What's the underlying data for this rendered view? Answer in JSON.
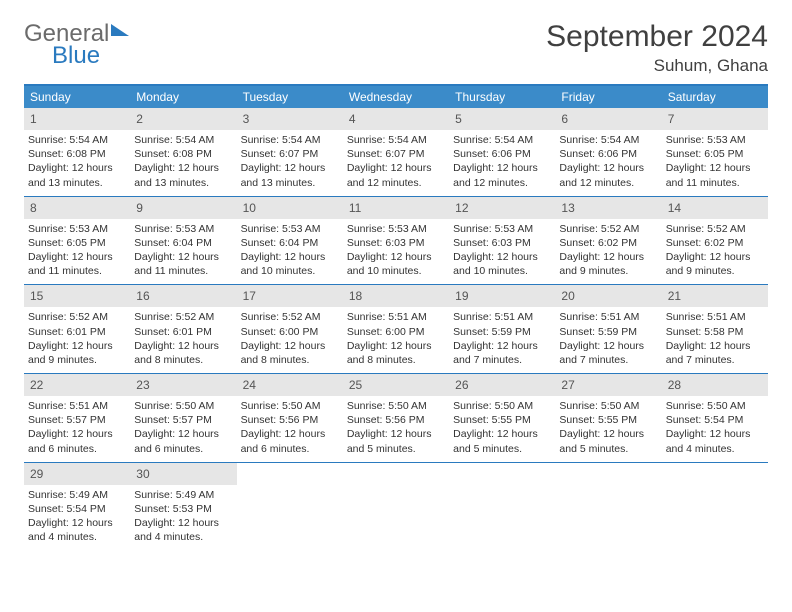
{
  "logo": {
    "word1": "General",
    "word2": "Blue"
  },
  "title": "September 2024",
  "location": "Suhum, Ghana",
  "colors": {
    "header_bg": "#3b8bc9",
    "rule": "#2a7abf",
    "daynum_bg": "#e6e6e6",
    "text": "#333333",
    "title_text": "#404040",
    "logo_gray": "#6b6b6b",
    "logo_blue": "#2a7abf"
  },
  "weekdays": [
    "Sunday",
    "Monday",
    "Tuesday",
    "Wednesday",
    "Thursday",
    "Friday",
    "Saturday"
  ],
  "days": [
    {
      "n": "1",
      "sunrise": "Sunrise: 5:54 AM",
      "sunset": "Sunset: 6:08 PM",
      "d1": "Daylight: 12 hours",
      "d2": "and 13 minutes."
    },
    {
      "n": "2",
      "sunrise": "Sunrise: 5:54 AM",
      "sunset": "Sunset: 6:08 PM",
      "d1": "Daylight: 12 hours",
      "d2": "and 13 minutes."
    },
    {
      "n": "3",
      "sunrise": "Sunrise: 5:54 AM",
      "sunset": "Sunset: 6:07 PM",
      "d1": "Daylight: 12 hours",
      "d2": "and 13 minutes."
    },
    {
      "n": "4",
      "sunrise": "Sunrise: 5:54 AM",
      "sunset": "Sunset: 6:07 PM",
      "d1": "Daylight: 12 hours",
      "d2": "and 12 minutes."
    },
    {
      "n": "5",
      "sunrise": "Sunrise: 5:54 AM",
      "sunset": "Sunset: 6:06 PM",
      "d1": "Daylight: 12 hours",
      "d2": "and 12 minutes."
    },
    {
      "n": "6",
      "sunrise": "Sunrise: 5:54 AM",
      "sunset": "Sunset: 6:06 PM",
      "d1": "Daylight: 12 hours",
      "d2": "and 12 minutes."
    },
    {
      "n": "7",
      "sunrise": "Sunrise: 5:53 AM",
      "sunset": "Sunset: 6:05 PM",
      "d1": "Daylight: 12 hours",
      "d2": "and 11 minutes."
    },
    {
      "n": "8",
      "sunrise": "Sunrise: 5:53 AM",
      "sunset": "Sunset: 6:05 PM",
      "d1": "Daylight: 12 hours",
      "d2": "and 11 minutes."
    },
    {
      "n": "9",
      "sunrise": "Sunrise: 5:53 AM",
      "sunset": "Sunset: 6:04 PM",
      "d1": "Daylight: 12 hours",
      "d2": "and 11 minutes."
    },
    {
      "n": "10",
      "sunrise": "Sunrise: 5:53 AM",
      "sunset": "Sunset: 6:04 PM",
      "d1": "Daylight: 12 hours",
      "d2": "and 10 minutes."
    },
    {
      "n": "11",
      "sunrise": "Sunrise: 5:53 AM",
      "sunset": "Sunset: 6:03 PM",
      "d1": "Daylight: 12 hours",
      "d2": "and 10 minutes."
    },
    {
      "n": "12",
      "sunrise": "Sunrise: 5:53 AM",
      "sunset": "Sunset: 6:03 PM",
      "d1": "Daylight: 12 hours",
      "d2": "and 10 minutes."
    },
    {
      "n": "13",
      "sunrise": "Sunrise: 5:52 AM",
      "sunset": "Sunset: 6:02 PM",
      "d1": "Daylight: 12 hours",
      "d2": "and 9 minutes."
    },
    {
      "n": "14",
      "sunrise": "Sunrise: 5:52 AM",
      "sunset": "Sunset: 6:02 PM",
      "d1": "Daylight: 12 hours",
      "d2": "and 9 minutes."
    },
    {
      "n": "15",
      "sunrise": "Sunrise: 5:52 AM",
      "sunset": "Sunset: 6:01 PM",
      "d1": "Daylight: 12 hours",
      "d2": "and 9 minutes."
    },
    {
      "n": "16",
      "sunrise": "Sunrise: 5:52 AM",
      "sunset": "Sunset: 6:01 PM",
      "d1": "Daylight: 12 hours",
      "d2": "and 8 minutes."
    },
    {
      "n": "17",
      "sunrise": "Sunrise: 5:52 AM",
      "sunset": "Sunset: 6:00 PM",
      "d1": "Daylight: 12 hours",
      "d2": "and 8 minutes."
    },
    {
      "n": "18",
      "sunrise": "Sunrise: 5:51 AM",
      "sunset": "Sunset: 6:00 PM",
      "d1": "Daylight: 12 hours",
      "d2": "and 8 minutes."
    },
    {
      "n": "19",
      "sunrise": "Sunrise: 5:51 AM",
      "sunset": "Sunset: 5:59 PM",
      "d1": "Daylight: 12 hours",
      "d2": "and 7 minutes."
    },
    {
      "n": "20",
      "sunrise": "Sunrise: 5:51 AM",
      "sunset": "Sunset: 5:59 PM",
      "d1": "Daylight: 12 hours",
      "d2": "and 7 minutes."
    },
    {
      "n": "21",
      "sunrise": "Sunrise: 5:51 AM",
      "sunset": "Sunset: 5:58 PM",
      "d1": "Daylight: 12 hours",
      "d2": "and 7 minutes."
    },
    {
      "n": "22",
      "sunrise": "Sunrise: 5:51 AM",
      "sunset": "Sunset: 5:57 PM",
      "d1": "Daylight: 12 hours",
      "d2": "and 6 minutes."
    },
    {
      "n": "23",
      "sunrise": "Sunrise: 5:50 AM",
      "sunset": "Sunset: 5:57 PM",
      "d1": "Daylight: 12 hours",
      "d2": "and 6 minutes."
    },
    {
      "n": "24",
      "sunrise": "Sunrise: 5:50 AM",
      "sunset": "Sunset: 5:56 PM",
      "d1": "Daylight: 12 hours",
      "d2": "and 6 minutes."
    },
    {
      "n": "25",
      "sunrise": "Sunrise: 5:50 AM",
      "sunset": "Sunset: 5:56 PM",
      "d1": "Daylight: 12 hours",
      "d2": "and 5 minutes."
    },
    {
      "n": "26",
      "sunrise": "Sunrise: 5:50 AM",
      "sunset": "Sunset: 5:55 PM",
      "d1": "Daylight: 12 hours",
      "d2": "and 5 minutes."
    },
    {
      "n": "27",
      "sunrise": "Sunrise: 5:50 AM",
      "sunset": "Sunset: 5:55 PM",
      "d1": "Daylight: 12 hours",
      "d2": "and 5 minutes."
    },
    {
      "n": "28",
      "sunrise": "Sunrise: 5:50 AM",
      "sunset": "Sunset: 5:54 PM",
      "d1": "Daylight: 12 hours",
      "d2": "and 4 minutes."
    },
    {
      "n": "29",
      "sunrise": "Sunrise: 5:49 AM",
      "sunset": "Sunset: 5:54 PM",
      "d1": "Daylight: 12 hours",
      "d2": "and 4 minutes."
    },
    {
      "n": "30",
      "sunrise": "Sunrise: 5:49 AM",
      "sunset": "Sunset: 5:53 PM",
      "d1": "Daylight: 12 hours",
      "d2": "and 4 minutes."
    }
  ]
}
